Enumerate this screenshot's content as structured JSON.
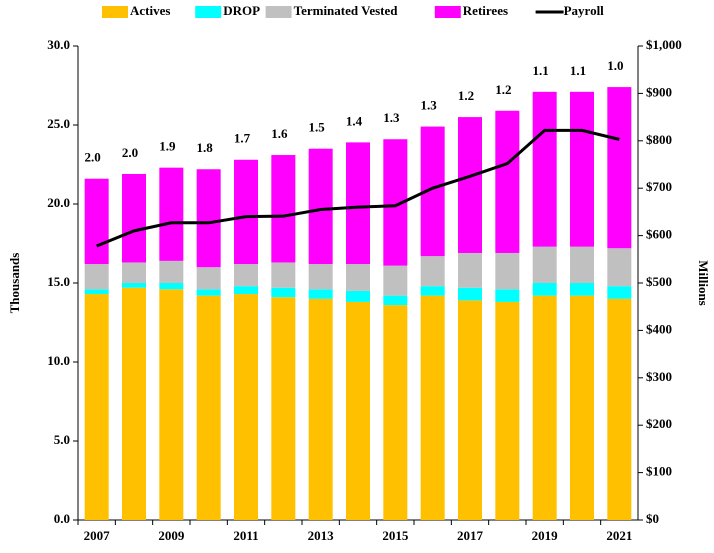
{
  "chart_data": {
    "type": "bar",
    "stacked": true,
    "categories": [
      "2007",
      null,
      "2009",
      null,
      "2011",
      null,
      "2013",
      null,
      "2015",
      null,
      "2017",
      null,
      "2019",
      null,
      "2021"
    ],
    "series": [
      {
        "name": "Actives",
        "color": "#ffc000",
        "values": [
          14.3,
          14.7,
          14.6,
          14.2,
          14.3,
          14.1,
          14.0,
          13.8,
          13.6,
          14.2,
          13.9,
          13.8,
          14.2,
          14.2,
          14.0
        ]
      },
      {
        "name": "DROP",
        "color": "#00ffff",
        "values": [
          0.3,
          0.3,
          0.4,
          0.4,
          0.5,
          0.6,
          0.6,
          0.7,
          0.6,
          0.6,
          0.8,
          0.8,
          0.8,
          0.8,
          0.8
        ]
      },
      {
        "name": "Terminated Vested",
        "color": "#c0c0c0",
        "values": [
          1.6,
          1.3,
          1.4,
          1.4,
          1.4,
          1.6,
          1.6,
          1.7,
          1.9,
          1.9,
          2.2,
          2.3,
          2.3,
          2.3,
          2.4
        ]
      },
      {
        "name": "Retirees",
        "color": "#ff00ff",
        "values": [
          5.4,
          5.6,
          5.9,
          6.2,
          6.6,
          6.8,
          7.3,
          7.7,
          8.0,
          8.2,
          8.6,
          9.0,
          9.8,
          9.8,
          10.2
        ]
      },
      {
        "name": "Payroll",
        "color": "#000000",
        "axis": "y2",
        "type": "line",
        "values": [
          578,
          610,
          627,
          627,
          640,
          641,
          655,
          660,
          663,
          700,
          725,
          752,
          822,
          822,
          803
        ]
      }
    ],
    "bar_labels": {
      "values": [
        2.0,
        2.0,
        1.9,
        1.8,
        1.7,
        1.6,
        1.5,
        1.4,
        1.3,
        1.3,
        1.2,
        1.2,
        1.1,
        1.1,
        1.0
      ],
      "value_labels": [
        "2.0",
        "2.0",
        "1.9",
        "1.8",
        "1.7",
        "1.6",
        "1.5",
        "1.4",
        "1.3",
        "1.3",
        "1.2",
        "1.2",
        "1.1",
        "1.1",
        "1.0"
      ]
    },
    "ylabel": "Thousands",
    "y2label": "Millions",
    "ylim": [
      0,
      30
    ],
    "yticks": [
      {
        "value": 0,
        "label": "0.0"
      },
      {
        "value": 5,
        "label": "5.0"
      },
      {
        "value": 10,
        "label": "10.0"
      },
      {
        "value": 15,
        "label": "15.0"
      },
      {
        "value": 20,
        "label": "20.0"
      },
      {
        "value": 25,
        "label": "25.0"
      },
      {
        "value": 30,
        "label": "30.0"
      }
    ],
    "y2lim": [
      0,
      1000
    ],
    "y2ticks": [
      {
        "value": 0,
        "label": "$0"
      },
      {
        "value": 100,
        "label": "$100"
      },
      {
        "value": 200,
        "label": "$200"
      },
      {
        "value": 300,
        "label": "$300"
      },
      {
        "value": 400,
        "label": "$400"
      },
      {
        "value": 500,
        "label": "$500"
      },
      {
        "value": 600,
        "label": "$600"
      },
      {
        "value": 700,
        "label": "$700"
      },
      {
        "value": 800,
        "label": "$800"
      },
      {
        "value": 900,
        "label": "$900"
      },
      {
        "value": 1000,
        "label": "$1,000"
      }
    ],
    "legend": "top"
  }
}
